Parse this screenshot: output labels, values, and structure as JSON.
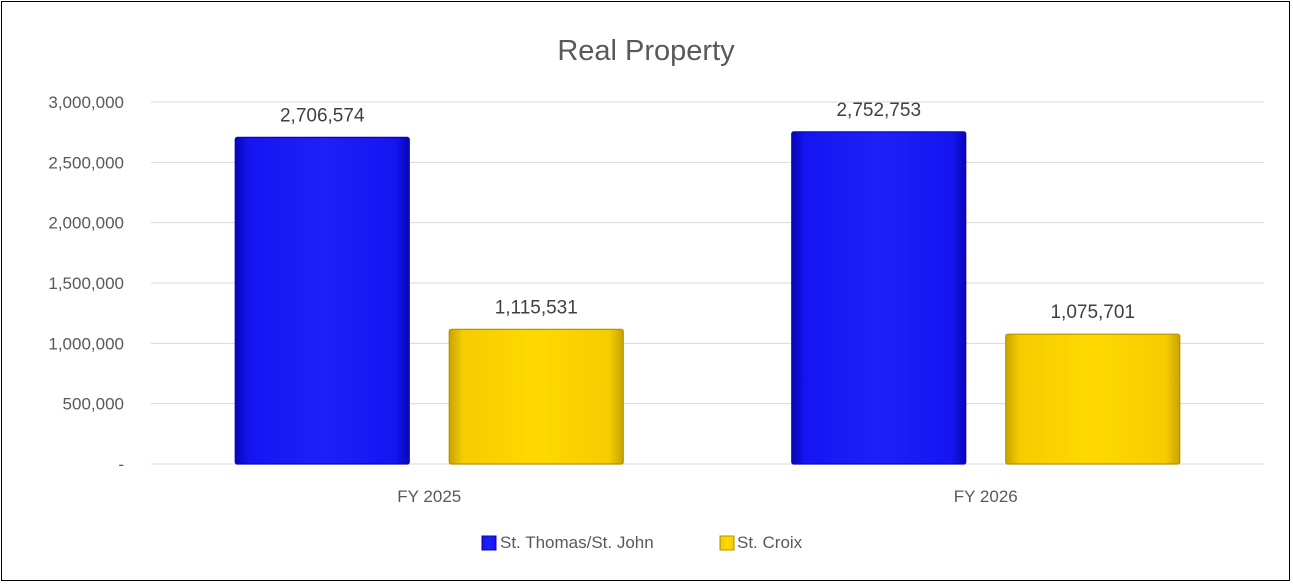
{
  "chart_data": {
    "type": "bar",
    "title": "Real Property",
    "xlabel": "",
    "ylabel": "",
    "categories": [
      "FY 2025",
      "FY 2026"
    ],
    "series": [
      {
        "name": "St. Thomas/St. John",
        "values": [
          2706574,
          2752753
        ],
        "color": "#1010f0"
      },
      {
        "name": "St. Croix",
        "values": [
          1115531,
          1075701
        ],
        "color": "#ffd700"
      }
    ],
    "data_labels": [
      [
        "2,706,574",
        "2,752,753"
      ],
      [
        "1,115,531",
        "1,075,701"
      ]
    ],
    "ylim": [
      0,
      3000000
    ],
    "y_ticks": [
      {
        "value": 0,
        "label": "-"
      },
      {
        "value": 500000,
        "label": "500,000"
      },
      {
        "value": 1000000,
        "label": "1,000,000"
      },
      {
        "value": 1500000,
        "label": "1,500,000"
      },
      {
        "value": 2000000,
        "label": "2,000,000"
      },
      {
        "value": 2500000,
        "label": "2,500,000"
      },
      {
        "value": 3000000,
        "label": "3,000,000"
      }
    ],
    "grid": true,
    "legend_position": "bottom"
  }
}
